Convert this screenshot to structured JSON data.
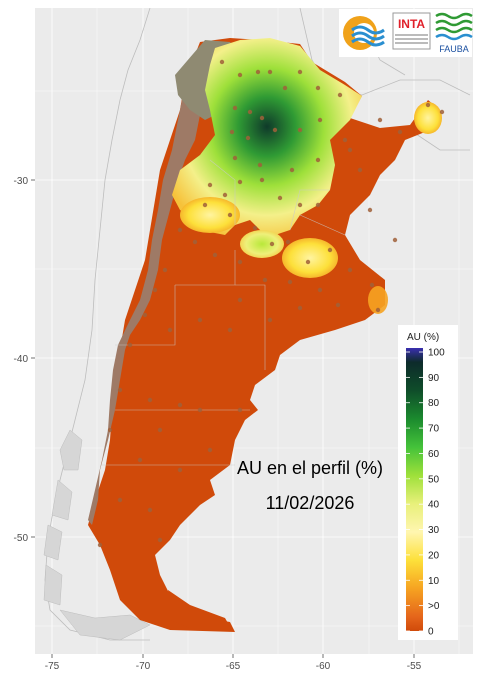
{
  "map": {
    "title": "AU en el perfil (%)",
    "date": "11/02/2026",
    "x_ticks": [
      "-75",
      "-70",
      "-65",
      "-60",
      "-55"
    ],
    "y_ticks": [
      "-30",
      "-40",
      "-50"
    ],
    "colors": {
      "panel": "#ebebeb",
      "grid": "#ffffff",
      "dry": "#d04a0a",
      "no_data": "#9e7a66",
      "neighbor_outline": "#bdbdbd",
      "station": "#a0603a"
    }
  },
  "legend": {
    "title": "AU (%)",
    "labels": [
      "100",
      "90",
      "80",
      "70",
      "60",
      "50",
      "40",
      "30",
      "20",
      "10",
      ">0",
      "0"
    ],
    "stops": [
      {
        "value": 100,
        "color": "#3a2fb0"
      },
      {
        "value": 95,
        "color": "#0d2b2b"
      },
      {
        "value": 85,
        "color": "#0f4d2a"
      },
      {
        "value": 75,
        "color": "#1b8a2e"
      },
      {
        "value": 65,
        "color": "#44c23a"
      },
      {
        "value": 55,
        "color": "#9ee03a"
      },
      {
        "value": 45,
        "color": "#e8f07a"
      },
      {
        "value": 35,
        "color": "#fff6b0"
      },
      {
        "value": 25,
        "color": "#fde03a"
      },
      {
        "value": 15,
        "color": "#f6a321"
      },
      {
        "value": 5,
        "color": "#e5651b"
      },
      {
        "value": 0,
        "color": "#d04a0a"
      }
    ]
  },
  "logos": {
    "inta_text": "INTA",
    "fauba_text": "FAUBA"
  }
}
